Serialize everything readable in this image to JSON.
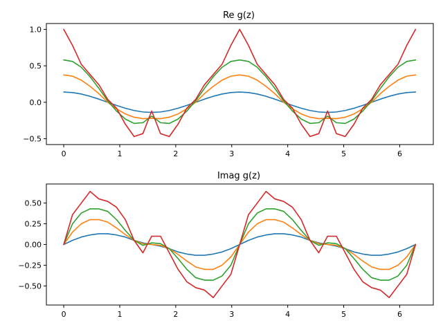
{
  "chart_data": [
    {
      "type": "line",
      "title": "Re g(z)",
      "xlim": [
        -0.31,
        6.6
      ],
      "ylim": [
        -0.58,
        1.08
      ],
      "xticks": [
        0,
        1,
        2,
        3,
        4,
        5,
        6
      ],
      "xtick_labels": [
        "0",
        "1",
        "2",
        "3",
        "4",
        "5",
        "6"
      ],
      "yticks": [
        -0.5,
        0.0,
        0.5,
        1.0
      ],
      "ytick_labels": [
        "−0.5",
        "0.0",
        "0.5",
        "1.0"
      ],
      "grid": false,
      "x": [
        0,
        0.157,
        0.314,
        0.471,
        0.628,
        0.785,
        0.942,
        1.1,
        1.257,
        1.414,
        1.571,
        1.728,
        1.885,
        2.042,
        2.199,
        2.356,
        2.513,
        2.67,
        2.827,
        2.985,
        3.142,
        3.299,
        3.456,
        3.613,
        3.77,
        3.927,
        4.084,
        4.241,
        4.398,
        4.555,
        4.712,
        4.869,
        5.027,
        5.184,
        5.341,
        5.498,
        5.655,
        5.812,
        5.969,
        6.126,
        6.283
      ],
      "series": [
        {
          "color": "#1f77b4",
          "values": [
            0.14,
            0.133,
            0.113,
            0.082,
            0.043,
            0.0,
            -0.043,
            -0.082,
            -0.113,
            -0.133,
            -0.14,
            -0.133,
            -0.113,
            -0.082,
            -0.043,
            0.0,
            0.043,
            0.082,
            0.113,
            0.133,
            0.14,
            0.133,
            0.113,
            0.082,
            0.043,
            0.0,
            -0.043,
            -0.082,
            -0.113,
            -0.133,
            -0.14,
            -0.133,
            -0.113,
            -0.082,
            -0.043,
            0.0,
            0.043,
            0.082,
            0.113,
            0.133,
            0.14
          ]
        },
        {
          "color": "#ff7f0e",
          "values": [
            0.375,
            0.358,
            0.303,
            0.218,
            0.118,
            0.0,
            -0.09,
            -0.16,
            -0.205,
            -0.225,
            -0.22,
            -0.225,
            -0.205,
            -0.16,
            -0.09,
            0.0,
            0.118,
            0.218,
            0.303,
            0.358,
            0.375,
            0.358,
            0.303,
            0.218,
            0.118,
            0.0,
            -0.09,
            -0.16,
            -0.205,
            -0.225,
            -0.22,
            -0.225,
            -0.205,
            -0.16,
            -0.09,
            0.0,
            0.118,
            0.218,
            0.303,
            0.358,
            0.375
          ]
        },
        {
          "color": "#2ca02c",
          "values": [
            0.58,
            0.56,
            0.48,
            0.35,
            0.19,
            0.02,
            -0.12,
            -0.23,
            -0.29,
            -0.28,
            -0.19,
            -0.28,
            -0.29,
            -0.23,
            -0.12,
            0.02,
            0.19,
            0.35,
            0.48,
            0.56,
            0.58,
            0.56,
            0.48,
            0.35,
            0.19,
            0.02,
            -0.12,
            -0.23,
            -0.29,
            -0.28,
            -0.19,
            -0.28,
            -0.29,
            -0.23,
            -0.12,
            0.02,
            0.19,
            0.35,
            0.48,
            0.56,
            0.58
          ]
        },
        {
          "color": "#d62728",
          "values": [
            1.0,
            0.78,
            0.52,
            0.38,
            0.24,
            0.04,
            -0.08,
            -0.3,
            -0.47,
            -0.43,
            -0.12,
            -0.43,
            -0.47,
            -0.3,
            -0.08,
            0.04,
            0.24,
            0.38,
            0.52,
            0.78,
            1.0,
            0.78,
            0.52,
            0.38,
            0.24,
            0.04,
            -0.08,
            -0.3,
            -0.47,
            -0.43,
            -0.12,
            -0.43,
            -0.47,
            -0.3,
            -0.08,
            0.04,
            0.24,
            0.38,
            0.52,
            0.78,
            1.0
          ]
        }
      ]
    },
    {
      "type": "line",
      "title": "Imag g(z)",
      "xlim": [
        -0.31,
        6.6
      ],
      "ylim": [
        -0.73,
        0.73
      ],
      "xticks": [
        0,
        1,
        2,
        3,
        4,
        5,
        6
      ],
      "xtick_labels": [
        "0",
        "1",
        "2",
        "3",
        "4",
        "5",
        "6"
      ],
      "yticks": [
        -0.5,
        -0.25,
        0.0,
        0.25,
        0.5
      ],
      "ytick_labels": [
        "−0.50",
        "−0.25",
        "0.00",
        "0.25",
        "0.50"
      ],
      "grid": false,
      "x": [
        0,
        0.157,
        0.314,
        0.471,
        0.628,
        0.785,
        0.942,
        1.1,
        1.257,
        1.414,
        1.571,
        1.728,
        1.885,
        2.042,
        2.199,
        2.356,
        2.513,
        2.67,
        2.827,
        2.985,
        3.142,
        3.299,
        3.456,
        3.613,
        3.77,
        3.927,
        4.084,
        4.241,
        4.398,
        4.555,
        4.712,
        4.869,
        5.027,
        5.184,
        5.341,
        5.498,
        5.655,
        5.812,
        5.969,
        6.126,
        6.283
      ],
      "series": [
        {
          "color": "#1f77b4",
          "values": [
            0.0,
            0.05,
            0.09,
            0.115,
            0.13,
            0.13,
            0.115,
            0.09,
            0.05,
            0.02,
            0.0,
            -0.02,
            -0.05,
            -0.09,
            -0.115,
            -0.13,
            -0.13,
            -0.115,
            -0.09,
            -0.05,
            0.0,
            0.05,
            0.09,
            0.115,
            0.13,
            0.13,
            0.115,
            0.09,
            0.05,
            0.02,
            0.0,
            -0.02,
            -0.05,
            -0.09,
            -0.115,
            -0.13,
            -0.13,
            -0.115,
            -0.09,
            -0.05,
            0.0
          ]
        },
        {
          "color": "#ff7f0e",
          "values": [
            0.0,
            0.15,
            0.25,
            0.3,
            0.3,
            0.27,
            0.2,
            0.12,
            0.05,
            0.01,
            0.0,
            -0.01,
            -0.05,
            -0.12,
            -0.2,
            -0.27,
            -0.3,
            -0.3,
            -0.25,
            -0.15,
            0.0,
            0.15,
            0.25,
            0.3,
            0.3,
            0.27,
            0.2,
            0.12,
            0.05,
            0.01,
            0.0,
            -0.01,
            -0.05,
            -0.12,
            -0.2,
            -0.27,
            -0.3,
            -0.3,
            -0.25,
            -0.15,
            0.0
          ]
        },
        {
          "color": "#2ca02c",
          "values": [
            0.0,
            0.25,
            0.38,
            0.43,
            0.43,
            0.4,
            0.3,
            0.17,
            0.05,
            -0.01,
            0.02,
            0.01,
            -0.05,
            -0.17,
            -0.3,
            -0.4,
            -0.43,
            -0.43,
            -0.38,
            -0.25,
            0.0,
            0.25,
            0.38,
            0.43,
            0.43,
            0.4,
            0.3,
            0.17,
            0.05,
            -0.01,
            0.02,
            0.01,
            -0.05,
            -0.17,
            -0.3,
            -0.4,
            -0.43,
            -0.43,
            -0.38,
            -0.25,
            0.0
          ]
        },
        {
          "color": "#d62728",
          "values": [
            0.0,
            0.36,
            0.5,
            0.64,
            0.55,
            0.52,
            0.45,
            0.3,
            0.05,
            -0.1,
            0.1,
            0.1,
            -0.1,
            -0.3,
            -0.45,
            -0.52,
            -0.55,
            -0.64,
            -0.5,
            -0.36,
            0.0,
            0.36,
            0.5,
            0.64,
            0.55,
            0.52,
            0.45,
            0.3,
            0.05,
            -0.1,
            0.1,
            0.1,
            -0.1,
            -0.3,
            -0.45,
            -0.52,
            -0.55,
            -0.64,
            -0.5,
            -0.36,
            0.0
          ]
        }
      ]
    }
  ]
}
